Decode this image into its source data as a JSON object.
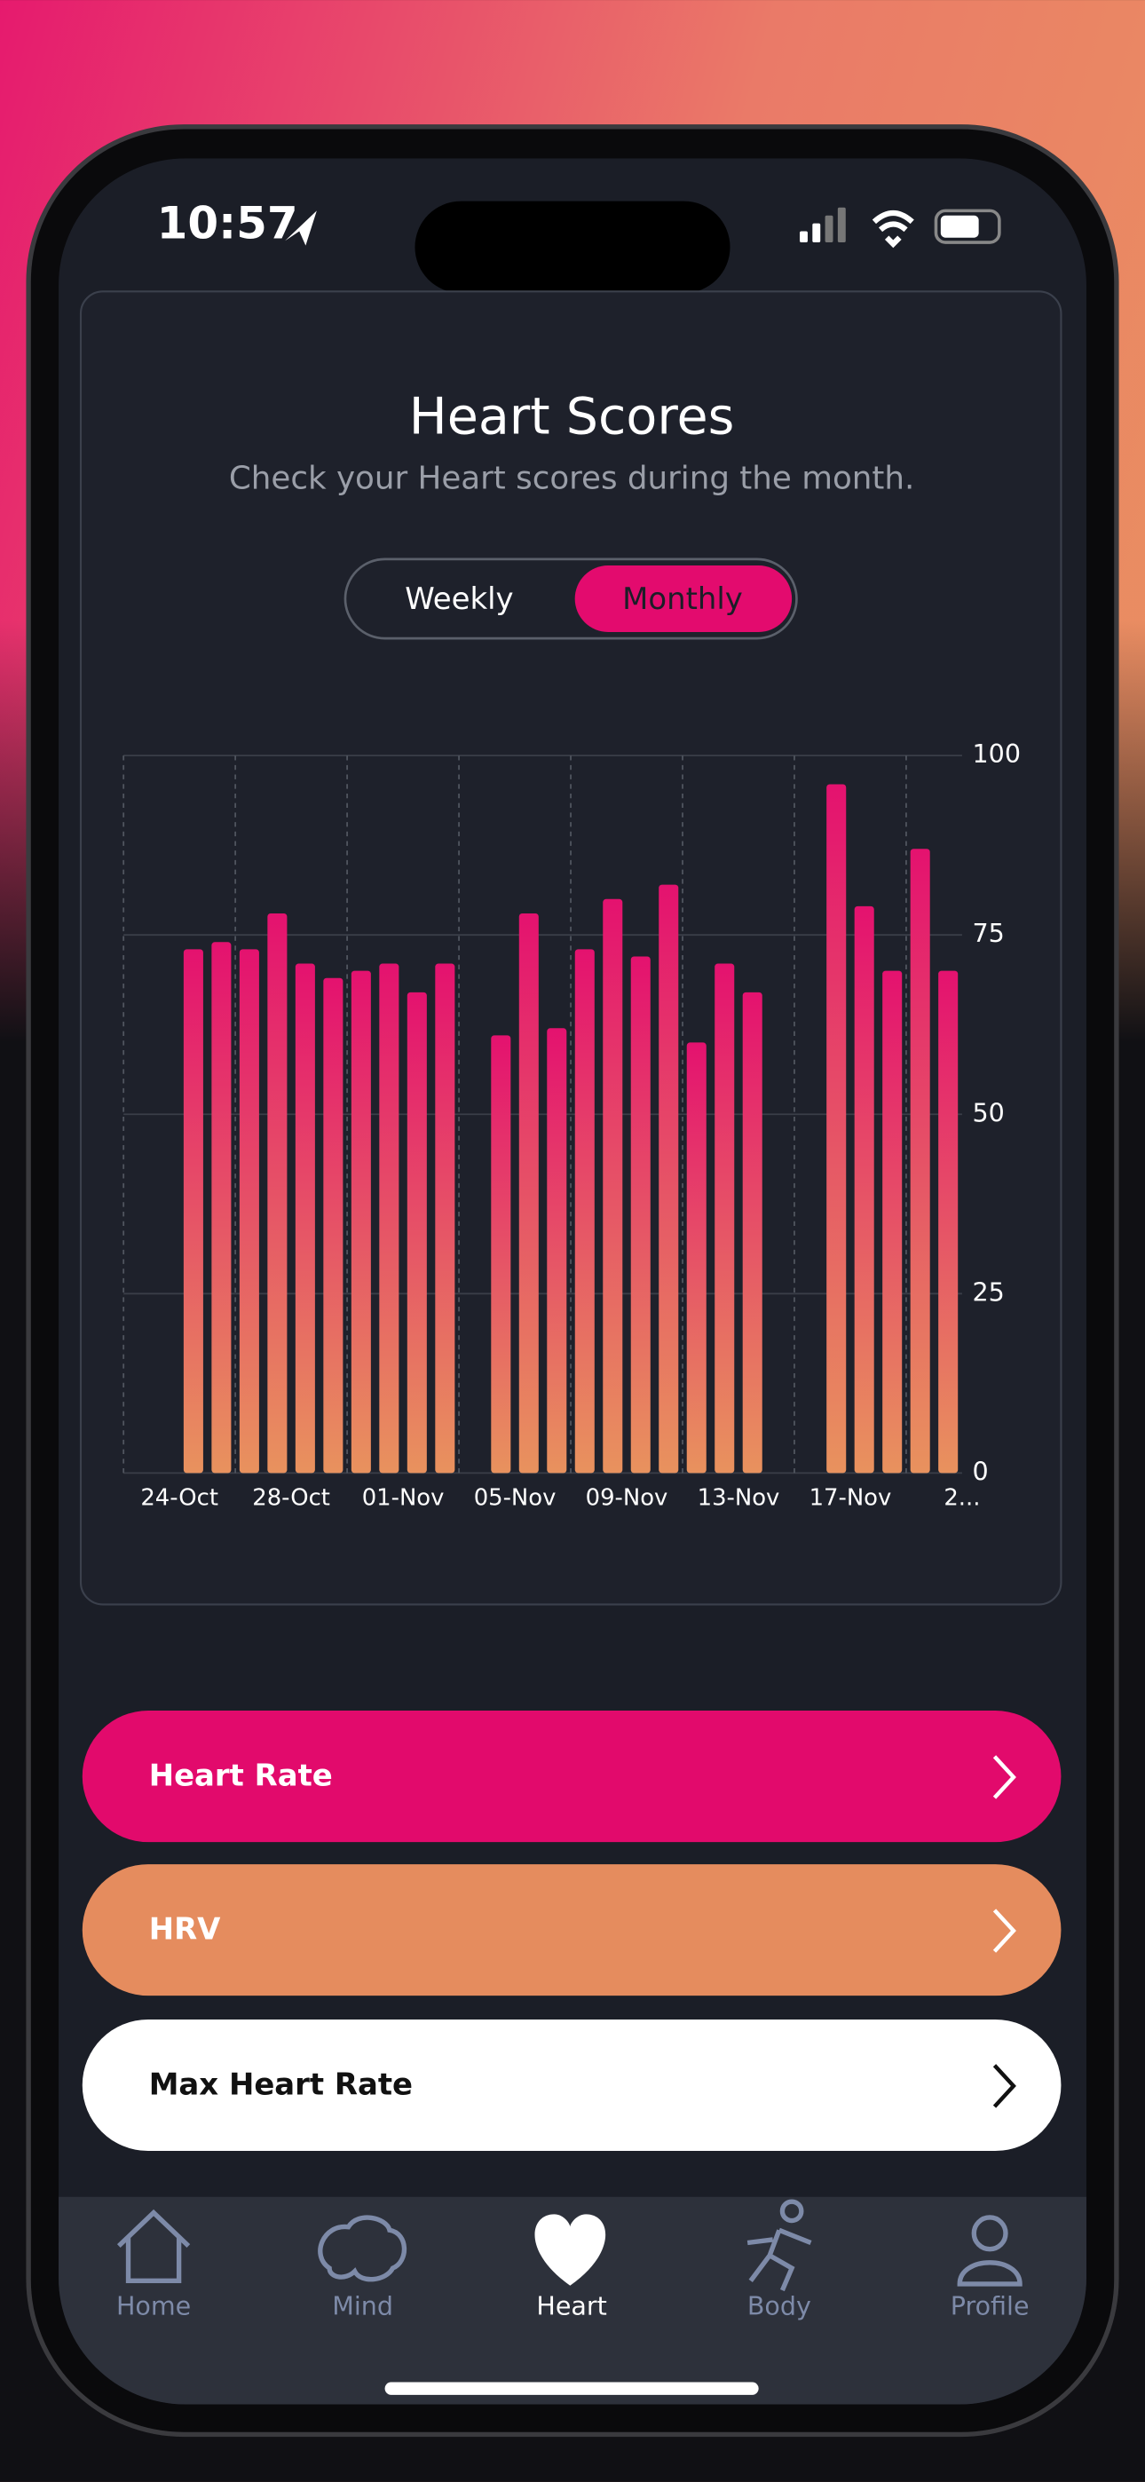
{
  "status_bar": {
    "time": "10:57"
  },
  "header": {
    "title": "Heart Scores",
    "subtitle": "Check your Heart scores during the month."
  },
  "toggle": [
    "Weekly",
    "Monthly"
  ],
  "chart_data": {
    "type": "bar",
    "categories": [
      "24-Oct",
      null,
      null,
      null,
      "28-Oct",
      null,
      null,
      null,
      "01-Nov",
      null,
      null,
      null,
      "05-Nov",
      null,
      null,
      null,
      "09-Nov",
      null,
      null,
      null,
      "13-Nov",
      null,
      null,
      null,
      "17-Nov",
      null,
      null,
      null,
      "2...",
      null
    ],
    "values": [
      null,
      null,
      73,
      74,
      73,
      78,
      71,
      69,
      70,
      71,
      67,
      71,
      null,
      61,
      78,
      62,
      73,
      80,
      72,
      82,
      60,
      71,
      67,
      null,
      null,
      96,
      79,
      70,
      87,
      70
    ],
    "colors": [
      "#e4126f",
      "#e8925e"
    ],
    "ylim": [
      0,
      100
    ],
    "yticks": [
      0,
      25,
      50,
      75,
      100
    ],
    "grid": true
  },
  "buttons": [
    "Heart Rate",
    "HRV",
    "Max Heart Rate"
  ],
  "nav": [
    "Home",
    "Mind",
    "Heart",
    "Body",
    "Profile"
  ]
}
